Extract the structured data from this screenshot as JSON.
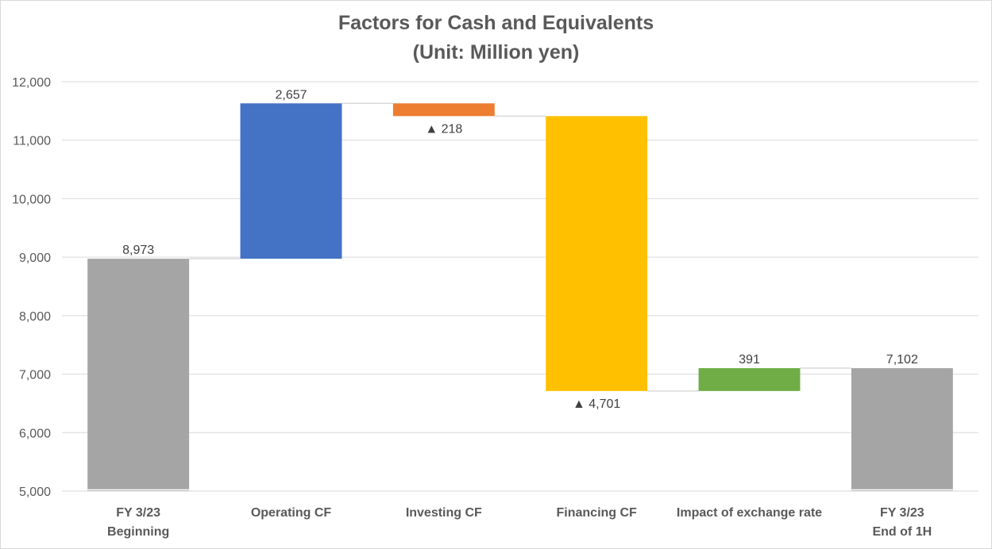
{
  "chart_data": {
    "type": "waterfall",
    "title": "Factors for Cash and Equivalents",
    "subtitle": "(Unit: Million yen)",
    "ylim": [
      5000,
      12000
    ],
    "yticks": [
      5000,
      6000,
      7000,
      8000,
      9000,
      10000,
      11000,
      12000
    ],
    "y_tick_labels": [
      "5,000",
      "6,000",
      "7,000",
      "8,000",
      "9,000",
      "10,000",
      "11,000",
      "12,000"
    ],
    "grid": true,
    "bars": [
      {
        "category": [
          "FY 3/23",
          "Beginning"
        ],
        "kind": "total",
        "start": 0,
        "end": 8973,
        "label": "8,973",
        "color": "#a5a5a5"
      },
      {
        "category": [
          "Operating CF"
        ],
        "kind": "change",
        "start": 8973,
        "end": 11630,
        "label": "2,657",
        "color": "#4472c4"
      },
      {
        "category": [
          "Investing CF"
        ],
        "kind": "change",
        "start": 11630,
        "end": 11412,
        "label": "▲ 218",
        "color": "#ed7d31"
      },
      {
        "category": [
          "Financing CF"
        ],
        "kind": "change",
        "start": 11412,
        "end": 6711,
        "label": "▲ 4,701",
        "color": "#ffc000"
      },
      {
        "category": [
          "Impact of exchange rate"
        ],
        "kind": "change",
        "start": 6711,
        "end": 7102,
        "label": "391",
        "color": "#70ad47"
      },
      {
        "category": [
          "FY 3/23",
          "End of 1H"
        ],
        "kind": "total",
        "start": 0,
        "end": 7102,
        "label": "7,102",
        "color": "#a5a5a5"
      }
    ]
  }
}
